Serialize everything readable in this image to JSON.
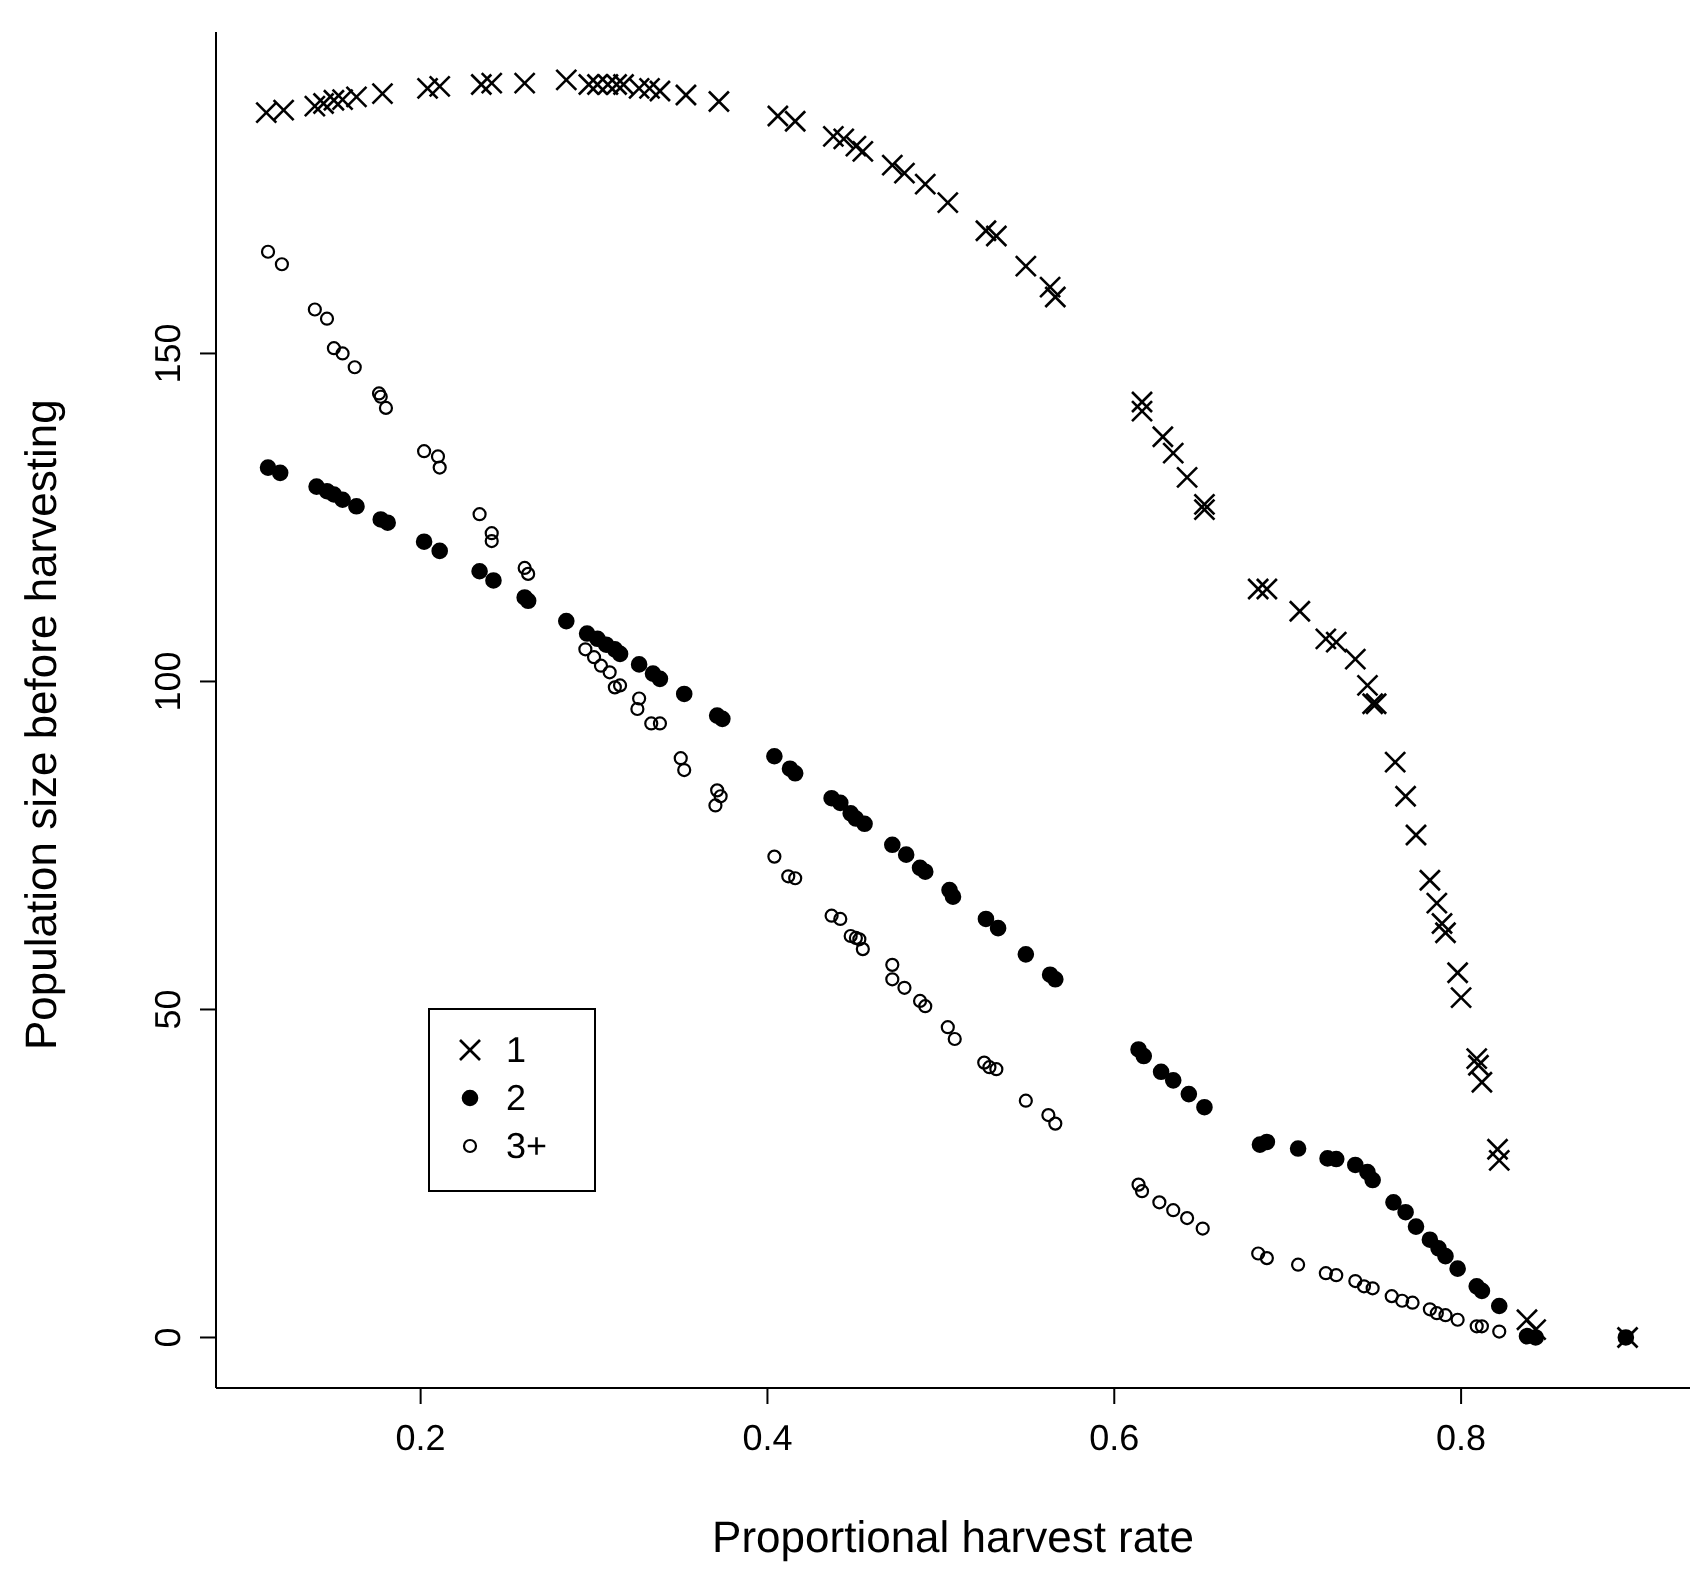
{
  "chart_data": {
    "type": "scatter",
    "xlabel": "Proportional harvest rate",
    "ylabel": "Population size before harvesting",
    "xlim": [
      0.082,
      0.932
    ],
    "ylim": [
      -7.7,
      199
    ],
    "xticks": [
      0.2,
      0.4,
      0.6,
      0.8
    ],
    "yticks": [
      0,
      50,
      100,
      150
    ],
    "grid": false,
    "legend": "bottom left",
    "series": [
      {
        "name": "1",
        "color": "#000000",
        "marker": "cross",
        "x": [
          0.111,
          0.121,
          0.139,
          0.144,
          0.15,
          0.155,
          0.163,
          0.178,
          0.204,
          0.211,
          0.235,
          0.241,
          0.26,
          0.284,
          0.297,
          0.302,
          0.308,
          0.313,
          0.317,
          0.326,
          0.332,
          0.338,
          0.353,
          0.372,
          0.406,
          0.416,
          0.438,
          0.444,
          0.451,
          0.455,
          0.472,
          0.479,
          0.491,
          0.504,
          0.526,
          0.532,
          0.549,
          0.563,
          0.566,
          0.616,
          0.616,
          0.628,
          0.634,
          0.642,
          0.652,
          0.652,
          0.683,
          0.688,
          0.707,
          0.722,
          0.728,
          0.739,
          0.746,
          0.749,
          0.751,
          0.762,
          0.768,
          0.774,
          0.782,
          0.786,
          0.789,
          0.791,
          0.798,
          0.8,
          0.809,
          0.81,
          0.812,
          0.821,
          0.822,
          0.838,
          0.843,
          0.896
        ],
        "values": [
          186.7,
          187.1,
          187.7,
          188.1,
          188.6,
          188.7,
          189.1,
          189.6,
          190.4,
          190.7,
          191.0,
          191.2,
          191.2,
          191.7,
          191.0,
          191.0,
          191.0,
          191.0,
          191.0,
          190.4,
          190.4,
          190.0,
          189.4,
          188.4,
          186.2,
          185.4,
          183.1,
          182.7,
          181.6,
          180.8,
          178.7,
          177.5,
          175.8,
          173.0,
          168.7,
          167.9,
          163.3,
          160.1,
          158.6,
          142.6,
          141.2,
          137.3,
          134.8,
          131.1,
          127.0,
          126.2,
          114.1,
          114.1,
          110.7,
          106.5,
          106.0,
          103.4,
          99.4,
          96.6,
          96.6,
          87.7,
          82.5,
          76.6,
          69.7,
          66.2,
          63.1,
          61.7,
          55.6,
          51.8,
          42.5,
          41.5,
          38.9,
          28.7,
          27.0,
          2.7,
          1.2,
          0
        ]
      },
      {
        "name": "2",
        "color": "#000000",
        "marker": "circle",
        "x": [
          0.112,
          0.119,
          0.14,
          0.146,
          0.15,
          0.155,
          0.163,
          0.177,
          0.181,
          0.202,
          0.211,
          0.234,
          0.242,
          0.26,
          0.262,
          0.284,
          0.296,
          0.302,
          0.307,
          0.312,
          0.315,
          0.326,
          0.334,
          0.338,
          0.352,
          0.371,
          0.374,
          0.404,
          0.413,
          0.416,
          0.437,
          0.442,
          0.448,
          0.451,
          0.456,
          0.472,
          0.48,
          0.488,
          0.491,
          0.505,
          0.507,
          0.526,
          0.533,
          0.549,
          0.563,
          0.566,
          0.614,
          0.617,
          0.627,
          0.634,
          0.643,
          0.652,
          0.684,
          0.688,
          0.706,
          0.723,
          0.728,
          0.739,
          0.746,
          0.749,
          0.761,
          0.768,
          0.774,
          0.782,
          0.787,
          0.791,
          0.798,
          0.809,
          0.812,
          0.822,
          0.838,
          0.843,
          0.895
        ],
        "values": [
          132.6,
          131.8,
          129.7,
          129.0,
          128.5,
          127.7,
          126.7,
          124.7,
          124.2,
          121.3,
          119.9,
          116.8,
          115.4,
          112.8,
          112.3,
          109.2,
          107.3,
          106.5,
          105.6,
          104.9,
          104.2,
          102.6,
          101.2,
          100.4,
          98.1,
          94.8,
          94.3,
          88.6,
          86.7,
          86.0,
          82.2,
          81.5,
          79.9,
          79.1,
          78.3,
          75.1,
          73.6,
          71.6,
          71.0,
          68.2,
          67.2,
          63.8,
          62.4,
          58.4,
          55.3,
          54.6,
          43.9,
          42.9,
          40.5,
          39.2,
          37.1,
          35.1,
          29.4,
          29.8,
          28.8,
          27.3,
          27.2,
          26.3,
          25.2,
          24.0,
          20.6,
          19.1,
          16.9,
          14.9,
          13.6,
          12.4,
          10.5,
          7.8,
          7.1,
          4.8,
          0.2,
          0,
          0
        ]
      },
      {
        "name": "3+",
        "color": "#000000",
        "marker": "circle-open",
        "x": [
          0.112,
          0.12,
          0.139,
          0.146,
          0.15,
          0.155,
          0.162,
          0.176,
          0.177,
          0.18,
          0.202,
          0.21,
          0.211,
          0.234,
          0.241,
          0.241,
          0.26,
          0.262,
          0.295,
          0.3,
          0.304,
          0.309,
          0.312,
          0.315,
          0.326,
          0.325,
          0.333,
          0.338,
          0.35,
          0.352,
          0.371,
          0.373,
          0.37,
          0.404,
          0.412,
          0.416,
          0.437,
          0.442,
          0.448,
          0.451,
          0.453,
          0.455,
          0.472,
          0.472,
          0.479,
          0.488,
          0.491,
          0.504,
          0.508,
          0.525,
          0.528,
          0.532,
          0.549,
          0.562,
          0.566,
          0.614,
          0.616,
          0.626,
          0.634,
          0.642,
          0.651,
          0.683,
          0.688,
          0.706,
          0.722,
          0.728,
          0.739,
          0.744,
          0.749,
          0.76,
          0.766,
          0.772,
          0.782,
          0.786,
          0.791,
          0.798,
          0.809,
          0.812,
          0.822
        ],
        "values": [
          165.5,
          163.6,
          156.7,
          155.3,
          150.8,
          150.0,
          147.9,
          143.9,
          143.4,
          141.7,
          135.1,
          134.3,
          132.6,
          125.5,
          122.6,
          121.4,
          117.3,
          116.4,
          104.9,
          103.7,
          102.4,
          101.4,
          99.1,
          99.4,
          97.4,
          95.8,
          93.6,
          93.6,
          88.3,
          86.5,
          83.4,
          82.5,
          81.1,
          73.3,
          70.3,
          70.0,
          64.3,
          63.8,
          61.2,
          60.9,
          60.7,
          59.2,
          56.8,
          54.6,
          53.3,
          51.3,
          50.5,
          47.3,
          45.5,
          41.9,
          41.2,
          40.9,
          36.1,
          33.9,
          32.6,
          23.3,
          22.3,
          20.6,
          19.4,
          18.2,
          16.6,
          12.8,
          12.1,
          11.1,
          9.8,
          9.5,
          8.6,
          7.8,
          7.5,
          6.3,
          5.6,
          5.3,
          4.3,
          3.7,
          3.4,
          2.7,
          1.7,
          1.7,
          0.9
        ]
      }
    ]
  }
}
